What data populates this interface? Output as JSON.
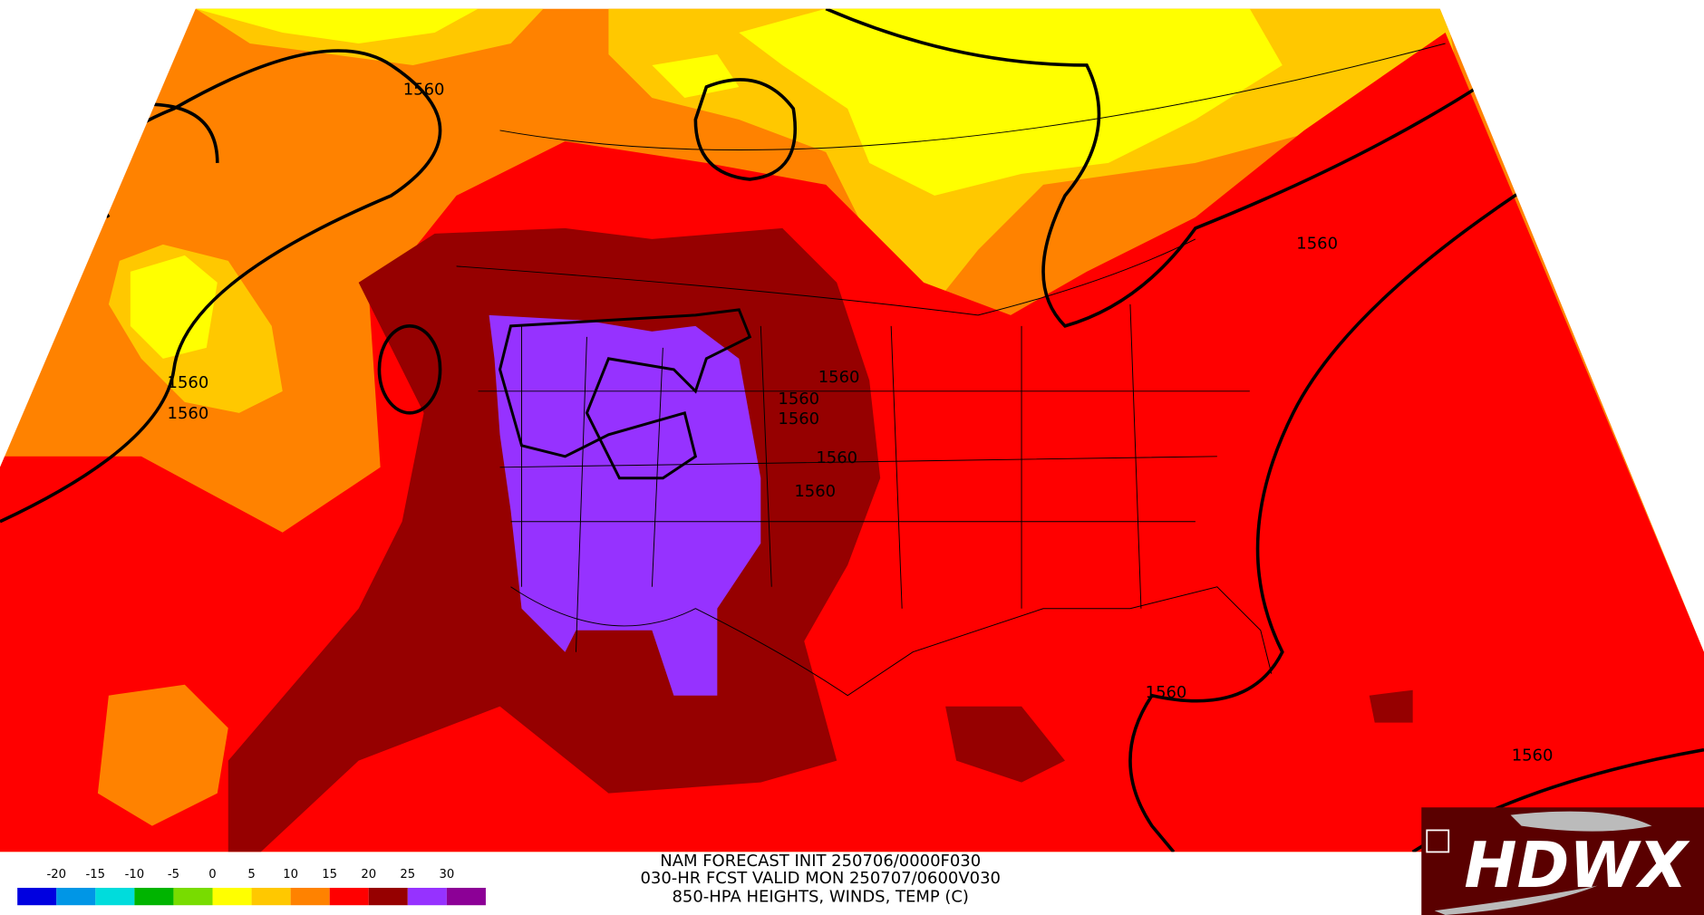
{
  "header": {
    "lines": [
      "NAM FORECAST INIT 250706/0000F030",
      "030-HR FCST VALID MON 250707/0600V030",
      "850-HPA HEIGHTS, WINDS, TEMP (C)"
    ]
  },
  "legend": {
    "ticks": [
      -20,
      -15,
      -10,
      -5,
      0,
      5,
      10,
      15,
      20,
      25,
      30
    ],
    "colors": [
      "#0000e0",
      "#0096e6",
      "#00dcdc",
      "#00b400",
      "#78dc00",
      "#ffff00",
      "#ffc800",
      "#ff8200",
      "#ff0000",
      "#960000",
      "#9632ff",
      "#8c0096"
    ]
  },
  "contour_labels": [
    "1560",
    "1560",
    "1560",
    "1560",
    "1560",
    "1560",
    "1560",
    "1560",
    "1560",
    "1560",
    "1560"
  ],
  "logo": {
    "text": "HDWX"
  }
}
